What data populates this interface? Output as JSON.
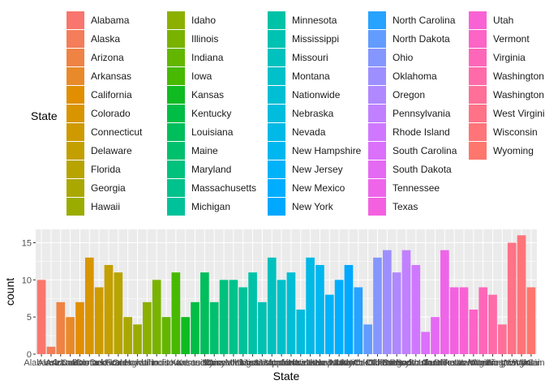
{
  "chart_data": {
    "type": "bar",
    "xlabel": "State",
    "ylabel": "count",
    "legend_title": "State",
    "legend_position": "top",
    "grid": true,
    "ylim": [
      0,
      16.8
    ],
    "yticks": [
      0,
      5,
      10,
      15
    ],
    "categories": [
      "Alabama",
      "Alaska",
      "Arizona",
      "Arkansas",
      "California",
      "Colorado",
      "Connecticut",
      "Delaware",
      "Florida",
      "Georgia",
      "Hawaii",
      "Idaho",
      "Illinois",
      "Indiana",
      "Iowa",
      "Kansas",
      "Kentucky",
      "Louisiana",
      "Maine",
      "Maryland",
      "Massachusetts",
      "Michigan",
      "Minnesota",
      "Mississippi",
      "Missouri",
      "Montana",
      "Nationwide",
      "Nebraska",
      "Nevada",
      "New Hampshire",
      "New Jersey",
      "New Mexico",
      "New York",
      "North Carolina",
      "North Dakota",
      "Ohio",
      "Oklahoma",
      "Oregon",
      "Pennsylvania",
      "Rhode Island",
      "South Carolina",
      "South Dakota",
      "Tennessee",
      "Texas",
      "Utah",
      "Vermont",
      "Virginia",
      "Washington",
      "Washington DC",
      "West Virginia",
      "Wisconsin",
      "Wyoming"
    ],
    "values": [
      10,
      1,
      7,
      5,
      7,
      13,
      9,
      12,
      11,
      5,
      4,
      7,
      10,
      5,
      11,
      5,
      7,
      11,
      7,
      10,
      10,
      9,
      11,
      7,
      13,
      10,
      11,
      6,
      13,
      12,
      8,
      10,
      12,
      9,
      4,
      13,
      14,
      11,
      14,
      12,
      3,
      5,
      14,
      9,
      9,
      6,
      9,
      8,
      4,
      15,
      16,
      9
    ],
    "colors": [
      "#F8766D",
      "#F47D5A",
      "#EF8344",
      "#E88A2A",
      "#E18F00",
      "#D89500",
      "#CE9A00",
      "#C39F00",
      "#B7A400",
      "#AAA800",
      "#9BAC00",
      "#8BB000",
      "#79B300",
      "#63B600",
      "#47B900",
      "#10BB22",
      "#00BD46",
      "#00BE5C",
      "#00C06E",
      "#00C17E",
      "#00C28C",
      "#00C29A",
      "#00C2A7",
      "#00C2B3",
      "#00C1BE",
      "#00C0C9",
      "#00BED3",
      "#00BCDD",
      "#00B9E6",
      "#00B6EF",
      "#00B2F8",
      "#00ADFF",
      "#00A8FF",
      "#26A2FF",
      "#639CFF",
      "#8596FF",
      "#9D8FFF",
      "#B088FF",
      "#C180FF",
      "#CF78FF",
      "#DB70FA",
      "#E56AF3",
      "#EE65EA",
      "#F461E0",
      "#F962D4",
      "#FC64C6",
      "#FE67B9",
      "#FF6BA9",
      "#FF6F98",
      "#FF7287",
      "#FF7479",
      "#FF766D"
    ],
    "x_tick_labels": [
      "Alabama",
      "Alaska",
      "Arizona",
      "Arkansas",
      "California",
      "Colorado",
      "Connecticut",
      "Delaware",
      "Florida",
      "Georgia",
      "Hawaii",
      "Idaho",
      "Illinois",
      "Indiana",
      "Iowa",
      "Kansas",
      "Kentucky",
      "Louisiana",
      "Maine",
      "Maryland",
      "Massachusetts",
      "Michigan",
      "Minnesota",
      "Mississippi",
      "Missouri",
      "Montana",
      "Nationwide",
      "Nebraska",
      "Nevada",
      "New Hampshire",
      "New Jersey",
      "New Mexico",
      "New York",
      "North Carolina",
      "North Dakota",
      "Ohio",
      "Oklahoma",
      "Oregon",
      "Pennsylvania",
      "Rhode Island",
      "South Carolina",
      "South Dakota",
      "Tennessee",
      "Texas",
      "Utah",
      "Vermont",
      "Virginia",
      "Washington",
      "Washington DC",
      "West Virginia",
      "Wisconsin",
      "Wyoming"
    ],
    "panel_background": "#EBEBEB",
    "grid_color": "#FFFFFF"
  }
}
